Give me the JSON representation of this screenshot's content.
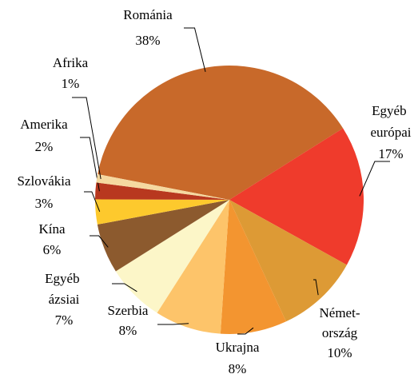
{
  "chart_data": {
    "type": "pie",
    "categories": [
      "Románia",
      "Egyéb európai",
      "Német-ország",
      "Ukrajna",
      "Szerbia",
      "Egyéb ázsiai",
      "Kína",
      "Szlovákia",
      "Amerika",
      "Afrika"
    ],
    "values": [
      38,
      17,
      10,
      8,
      8,
      7,
      6,
      3,
      2,
      1
    ],
    "value_labels": [
      "38%",
      "17%",
      "10%",
      "8%",
      "8%",
      "7%",
      "6%",
      "3%",
      "2%",
      "1%"
    ],
    "colors": [
      "#c8692a",
      "#ef3b2c",
      "#dd9a35",
      "#f39530",
      "#fdc46a",
      "#fcf6c8",
      "#8c5a2e",
      "#fdc92d",
      "#b8381f",
      "#f5d9a0"
    ]
  }
}
